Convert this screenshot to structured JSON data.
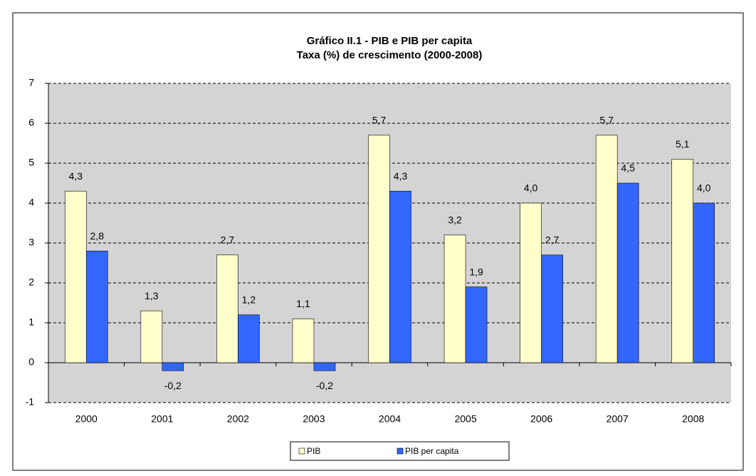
{
  "chart_data": {
    "type": "bar",
    "title": "Gráfico II.1 - PIB e PIB per capita",
    "subtitle": "Taxa (%) de crescimento  (2000-2008)",
    "categories": [
      "2000",
      "2001",
      "2002",
      "2003",
      "2004",
      "2005",
      "2006",
      "2007",
      "2008"
    ],
    "series": [
      {
        "name": "PIB",
        "color": "#ffffcc",
        "values": [
          4.3,
          1.3,
          2.7,
          1.1,
          5.7,
          3.2,
          4.0,
          5.7,
          5.1
        ],
        "value_labels": [
          "4,3",
          "1,3",
          "2,7",
          "1,1",
          "5,7",
          "3,2",
          "4,0",
          "5,7",
          "5,1"
        ]
      },
      {
        "name": "PIB per capita",
        "color": "#3366ff",
        "values": [
          2.8,
          -0.2,
          1.2,
          -0.2,
          4.3,
          1.9,
          2.7,
          4.5,
          4.0
        ],
        "value_labels": [
          "2,8",
          "-0,2",
          "1,2",
          "-0,2",
          "4,3",
          "1,9",
          "2,7",
          "4,5",
          "4,0"
        ]
      }
    ],
    "ylim": [
      -1,
      7
    ],
    "yticks": [
      -1,
      0,
      1,
      2,
      3,
      4,
      5,
      6,
      7
    ],
    "grid": true,
    "legend": "bottom"
  }
}
